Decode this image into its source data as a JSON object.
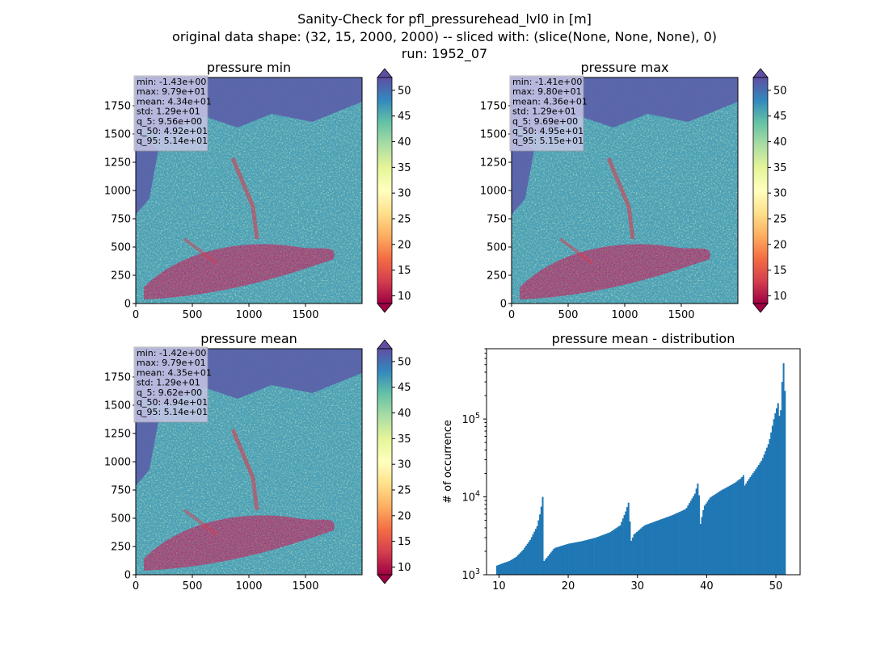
{
  "figure": {
    "title_lines": [
      "Sanity-Check for pfl_pressurehead_lvl0 in [m]",
      "original data shape: (32, 15, 2000, 2000) -- sliced with: (slice(None, None, None), 0)",
      "run: 1952_07"
    ]
  },
  "colors": {
    "hist_bar": "#1f77b4",
    "stats_box": "#c6c6e6",
    "map_water": "#5b63aa",
    "colormap": [
      "#9e0142",
      "#d53e4f",
      "#f46d43",
      "#fdae61",
      "#fee08b",
      "#ffffbf",
      "#e6f598",
      "#abdda4",
      "#66c2a5",
      "#3288bd",
      "#5e4fa2"
    ]
  },
  "chart_data": [
    {
      "type": "heatmap",
      "title": "pressure min",
      "x_ticks": [
        "0",
        "500",
        "1000",
        "1500"
      ],
      "y_ticks": [
        "0",
        "250",
        "500",
        "750",
        "1000",
        "1250",
        "1500",
        "1750"
      ],
      "xlim": [
        0,
        2000
      ],
      "ylim": [
        0,
        2000
      ],
      "colorbar": {
        "ticks": [
          "10",
          "15",
          "20",
          "25",
          "30",
          "35",
          "40",
          "45",
          "50"
        ],
        "range": [
          8.5,
          52.5
        ],
        "colormap": "Spectral",
        "extend": "both"
      },
      "stats": [
        "min: -1.43e+00",
        "max: 9.79e+01",
        "mean: 4.34e+01",
        "std: 1.29e+01",
        "q_5: 9.56e+00",
        "q_50: 4.92e+01",
        "q_95: 5.14e+01"
      ]
    },
    {
      "type": "heatmap",
      "title": "pressure max",
      "x_ticks": [
        "0",
        "500",
        "1000",
        "1500"
      ],
      "y_ticks": [
        "0",
        "250",
        "500",
        "750",
        "1000",
        "1250",
        "1500",
        "1750"
      ],
      "xlim": [
        0,
        2000
      ],
      "ylim": [
        0,
        2000
      ],
      "colorbar": {
        "ticks": [
          "10",
          "15",
          "20",
          "25",
          "30",
          "35",
          "40",
          "45",
          "50"
        ],
        "range": [
          8.5,
          52.5
        ],
        "colormap": "Spectral",
        "extend": "both"
      },
      "stats": [
        "min: -1.41e+00",
        "max: 9.80e+01",
        "mean: 4.36e+01",
        "std: 1.29e+01",
        "q_5: 9.69e+00",
        "q_50: 4.95e+01",
        "q_95: 5.15e+01"
      ]
    },
    {
      "type": "heatmap",
      "title": "pressure mean",
      "x_ticks": [
        "0",
        "500",
        "1000",
        "1500"
      ],
      "y_ticks": [
        "0",
        "250",
        "500",
        "750",
        "1000",
        "1250",
        "1500",
        "1750"
      ],
      "xlim": [
        0,
        2000
      ],
      "ylim": [
        0,
        2000
      ],
      "colorbar": {
        "ticks": [
          "10",
          "15",
          "20",
          "25",
          "30",
          "35",
          "40",
          "45",
          "50"
        ],
        "range": [
          8.5,
          52.5
        ],
        "colormap": "Spectral",
        "extend": "both"
      },
      "stats": [
        "min: -1.42e+00",
        "max: 9.79e+01",
        "mean: 4.35e+01",
        "std: 1.29e+01",
        "q_5: 9.62e+00",
        "q_50: 4.94e+01",
        "q_95: 5.14e+01"
      ]
    },
    {
      "type": "bar",
      "title": "pressure mean - distribution",
      "xlabel": "",
      "ylabel": "# of occurrence",
      "y_scale": "log",
      "xlim": [
        8.2,
        53.5
      ],
      "ylim": [
        1000,
        800000
      ],
      "x_ticks": [
        "10",
        "20",
        "30",
        "40",
        "50"
      ],
      "y_ticks": [
        {
          "value": 1000,
          "base": "10",
          "exp": "3"
        },
        {
          "value": 10000,
          "base": "10",
          "exp": "4"
        },
        {
          "value": 100000,
          "base": "10",
          "exp": "5"
        }
      ],
      "bins": {
        "start": 9.6,
        "end": 51.4,
        "count": 209
      },
      "anchors": [
        [
          9.6,
          1300
        ],
        [
          10.5,
          1400
        ],
        [
          11.5,
          1500
        ],
        [
          12.5,
          1700
        ],
        [
          13.5,
          2100
        ],
        [
          14.5,
          2800
        ],
        [
          15.5,
          4200
        ],
        [
          16.0,
          6500
        ],
        [
          16.3,
          10000
        ],
        [
          16.5,
          1500
        ],
        [
          17.0,
          1700
        ],
        [
          18.0,
          2200
        ],
        [
          20.0,
          2500
        ],
        [
          22.0,
          2700
        ],
        [
          24.0,
          3000
        ],
        [
          26.0,
          3500
        ],
        [
          27.5,
          4300
        ],
        [
          28.3,
          6500
        ],
        [
          28.8,
          9000
        ],
        [
          29.0,
          2600
        ],
        [
          29.5,
          3300
        ],
        [
          31.0,
          4300
        ],
        [
          33.0,
          5000
        ],
        [
          35.0,
          5800
        ],
        [
          37.0,
          7000
        ],
        [
          38.3,
          11000
        ],
        [
          38.8,
          16000
        ],
        [
          39.1,
          4500
        ],
        [
          39.6,
          7500
        ],
        [
          40.5,
          9800
        ],
        [
          42.0,
          12000
        ],
        [
          44.0,
          15000
        ],
        [
          45.0,
          17500
        ],
        [
          45.4,
          19500
        ],
        [
          45.5,
          14000
        ],
        [
          46.0,
          16500
        ],
        [
          47.0,
          22000
        ],
        [
          48.0,
          30000
        ],
        [
          49.0,
          50000
        ],
        [
          49.8,
          110000
        ],
        [
          50.3,
          160000
        ],
        [
          50.5,
          110000
        ],
        [
          50.7,
          130000
        ],
        [
          50.9,
          300000
        ],
        [
          51.1,
          520000
        ],
        [
          51.25,
          450000
        ],
        [
          51.4,
          60000
        ]
      ]
    }
  ]
}
